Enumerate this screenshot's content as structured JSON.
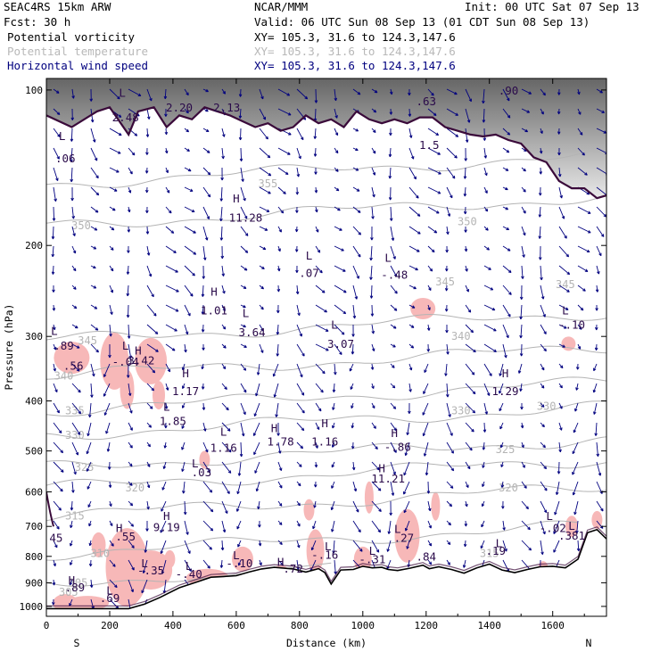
{
  "header": {
    "model": "SEAC4RS 15km ARW",
    "forecast": "Fcst:    30 h",
    "org": "NCAR/MMM",
    "init": "Init: 00 UTC Sat 07 Sep 13",
    "valid": "Valid: 06 UTC Sun 08 Sep 13 (01 CDT Sun 08 Sep 13)",
    "fields": [
      {
        "name": "Potential vorticity",
        "xy": "XY= 105.3, 31.6 to 124.3,147.6",
        "color": "#000000"
      },
      {
        "name": "Potential temperature",
        "xy": "XY= 105.3, 31.6 to 124.3,147.6",
        "color": "#b8b8b8"
      },
      {
        "name": "Horizontal wind speed",
        "xy": "XY= 105.3, 31.6 to 124.3,147.6",
        "color": "#00007f"
      }
    ]
  },
  "colors": {
    "pv_fill": "#f7b8b8",
    "theta": "#b4b4b4",
    "wind": "#00007f",
    "tropo": "#3a0a3a",
    "terrain": "#000000",
    "hl_text": "#2a0a4a"
  },
  "chart_data": {
    "type": "line",
    "title": "",
    "xlabel": "Distance (km)",
    "ylabel": "Pressure (hPa)",
    "xlim": [
      0,
      1770
    ],
    "ylim": [
      1045,
      95
    ],
    "y_log": true,
    "x_ticks": [
      0,
      200,
      400,
      600,
      800,
      1000,
      1200,
      1400,
      1600
    ],
    "y_ticks": [
      100,
      200,
      300,
      400,
      500,
      600,
      700,
      800,
      900,
      1000
    ],
    "x_end_labels": {
      "left": "S",
      "right": "N"
    },
    "terrain": [
      [
        0,
        1010
      ],
      [
        260,
        1010
      ],
      [
        310,
        990
      ],
      [
        360,
        960
      ],
      [
        420,
        920
      ],
      [
        480,
        895
      ],
      [
        520,
        878
      ],
      [
        560,
        875
      ],
      [
        600,
        872
      ],
      [
        640,
        858
      ],
      [
        680,
        846
      ],
      [
        720,
        840
      ],
      [
        780,
        846
      ],
      [
        820,
        858
      ],
      [
        860,
        845
      ],
      [
        880,
        860
      ],
      [
        900,
        905
      ],
      [
        930,
        850
      ],
      [
        970,
        848
      ],
      [
        1000,
        836
      ],
      [
        1030,
        842
      ],
      [
        1060,
        840
      ],
      [
        1080,
        848
      ],
      [
        1110,
        852
      ],
      [
        1150,
        843
      ],
      [
        1190,
        832
      ],
      [
        1210,
        845
      ],
      [
        1240,
        838
      ],
      [
        1280,
        848
      ],
      [
        1320,
        862
      ],
      [
        1360,
        842
      ],
      [
        1400,
        828
      ],
      [
        1440,
        850
      ],
      [
        1480,
        860
      ],
      [
        1520,
        848
      ],
      [
        1560,
        838
      ],
      [
        1600,
        836
      ],
      [
        1640,
        842
      ],
      [
        1680,
        810
      ],
      [
        1710,
        720
      ],
      [
        1740,
        710
      ],
      [
        1770,
        740
      ]
    ],
    "tropopause": [
      [
        0,
        112
      ],
      [
        80,
        118
      ],
      [
        160,
        110
      ],
      [
        200,
        108
      ],
      [
        260,
        122
      ],
      [
        290,
        110
      ],
      [
        340,
        108
      ],
      [
        380,
        118
      ],
      [
        420,
        112
      ],
      [
        460,
        114
      ],
      [
        500,
        108
      ],
      [
        540,
        110
      ],
      [
        580,
        112
      ],
      [
        620,
        115
      ],
      [
        660,
        118
      ],
      [
        700,
        116
      ],
      [
        740,
        120
      ],
      [
        780,
        118
      ],
      [
        820,
        112
      ],
      [
        860,
        116
      ],
      [
        900,
        114
      ],
      [
        940,
        118
      ],
      [
        980,
        110
      ],
      [
        1020,
        114
      ],
      [
        1060,
        116
      ],
      [
        1100,
        114
      ],
      [
        1140,
        116
      ],
      [
        1180,
        113
      ],
      [
        1220,
        113
      ],
      [
        1260,
        118
      ],
      [
        1300,
        120
      ],
      [
        1340,
        122
      ],
      [
        1380,
        123
      ],
      [
        1420,
        122
      ],
      [
        1460,
        125
      ],
      [
        1500,
        127
      ],
      [
        1540,
        135
      ],
      [
        1580,
        138
      ],
      [
        1620,
        150
      ],
      [
        1660,
        155
      ],
      [
        1700,
        155
      ],
      [
        1740,
        162
      ],
      [
        1770,
        160
      ]
    ],
    "isentropes": [
      {
        "label": "305",
        "p": 900,
        "x_label": 100
      },
      {
        "label": "310",
        "p": 790,
        "x_label": 170
      },
      {
        "label": "315",
        "p": 668,
        "x_label": 90
      },
      {
        "label": "320",
        "p": 590,
        "x_label": 280
      },
      {
        "label": "325",
        "p": 538,
        "x_label": 120
      },
      {
        "label": "330",
        "p": 466,
        "x_label": 90
      },
      {
        "label": "335",
        "p": 418,
        "x_label": 90
      },
      {
        "label": "340",
        "p": 358,
        "x_label": 55
      },
      {
        "label": "345",
        "p": 306,
        "x_label": 130
      },
      {
        "label": "350",
        "p": 183,
        "x_label": 110
      },
      {
        "label": "355",
        "p": 152,
        "x_label": 700
      }
    ],
    "extra_theta_labels": [
      {
        "label": "320",
        "x": 1460,
        "p": 590
      },
      {
        "label": "325",
        "x": 1450,
        "p": 497
      },
      {
        "label": "330",
        "x": 1310,
        "p": 418
      },
      {
        "label": "330",
        "x": 1580,
        "p": 410
      },
      {
        "label": "340",
        "x": 1310,
        "p": 300
      },
      {
        "label": "345",
        "x": 1260,
        "p": 235
      },
      {
        "label": "345",
        "x": 1640,
        "p": 238
      },
      {
        "label": "350",
        "x": 1330,
        "p": 180
      },
      {
        "label": "300",
        "x": 215,
        "p": 1035
      },
      {
        "label": "315",
        "x": 1400,
        "p": 790
      },
      {
        "label": "320",
        "x": 1680,
        "p": 870
      },
      {
        "label": "305",
        "x": 70,
        "p": 938
      }
    ],
    "pv_blobs": [
      {
        "x": 80,
        "p": 330,
        "rx": 20,
        "ry": 18
      },
      {
        "x": 215,
        "p": 335,
        "rx": 16,
        "ry": 32
      },
      {
        "x": 255,
        "p": 380,
        "rx": 8,
        "ry": 22
      },
      {
        "x": 330,
        "p": 335,
        "rx": 18,
        "ry": 26
      },
      {
        "x": 355,
        "p": 390,
        "rx": 7,
        "ry": 16
      },
      {
        "x": 500,
        "p": 520,
        "rx": 6,
        "ry": 10
      },
      {
        "x": 1190,
        "p": 265,
        "rx": 14,
        "ry": 12
      },
      {
        "x": 1650,
        "p": 310,
        "rx": 8,
        "ry": 8
      },
      {
        "x": 255,
        "p": 840,
        "rx": 24,
        "ry": 44
      },
      {
        "x": 165,
        "p": 760,
        "rx": 8,
        "ry": 14
      },
      {
        "x": 330,
        "p": 850,
        "rx": 24,
        "ry": 22
      },
      {
        "x": 390,
        "p": 810,
        "rx": 6,
        "ry": 10
      },
      {
        "x": 510,
        "p": 880,
        "rx": 24,
        "ry": 10
      },
      {
        "x": 620,
        "p": 810,
        "rx": 12,
        "ry": 14
      },
      {
        "x": 850,
        "p": 780,
        "rx": 10,
        "ry": 24
      },
      {
        "x": 1000,
        "p": 810,
        "rx": 10,
        "ry": 14
      },
      {
        "x": 1140,
        "p": 730,
        "rx": 14,
        "ry": 30
      },
      {
        "x": 740,
        "p": 860,
        "rx": 10,
        "ry": 8
      },
      {
        "x": 60,
        "p": 985,
        "rx": 14,
        "ry": 10
      },
      {
        "x": 130,
        "p": 985,
        "rx": 24,
        "ry": 8
      },
      {
        "x": 1660,
        "p": 700,
        "rx": 7,
        "ry": 12
      },
      {
        "x": 1740,
        "p": 680,
        "rx": 6,
        "ry": 10
      },
      {
        "x": 830,
        "p": 650,
        "rx": 6,
        "ry": 12
      },
      {
        "x": 1020,
        "p": 615,
        "rx": 5,
        "ry": 18
      },
      {
        "x": 1230,
        "p": 640,
        "rx": 5,
        "ry": 16
      },
      {
        "x": 1570,
        "p": 850,
        "rx": 6,
        "ry": 10
      }
    ],
    "hl_annotations": [
      {
        "t": "L",
        "x": 50,
        "p": 125
      },
      {
        "t": ".06",
        "x": 60,
        "p": 138
      },
      {
        "t": "L",
        "x": 240,
        "p": 103
      },
      {
        "t": "2.48",
        "x": 250,
        "p": 115
      },
      {
        "t": "2.20",
        "x": 420,
        "p": 110
      },
      {
        "t": "2.13",
        "x": 570,
        "p": 110
      },
      {
        "t": ".63",
        "x": 1200,
        "p": 107
      },
      {
        "t": ".90",
        "x": 1460,
        "p": 102
      },
      {
        "t": "1.5",
        "x": 1210,
        "p": 130
      },
      {
        "t": "H",
        "x": 600,
        "p": 165
      },
      {
        "t": "11.28",
        "x": 630,
        "p": 180
      },
      {
        "t": "L",
        "x": 830,
        "p": 213
      },
      {
        "t": ".07",
        "x": 830,
        "p": 230
      },
      {
        "t": "L",
        "x": 1080,
        "p": 215
      },
      {
        "t": "-.48",
        "x": 1100,
        "p": 232
      },
      {
        "t": "H",
        "x": 530,
        "p": 250
      },
      {
        "t": "1.01",
        "x": 530,
        "p": 272
      },
      {
        "t": "L",
        "x": 630,
        "p": 275
      },
      {
        "t": "3.64",
        "x": 650,
        "p": 300
      },
      {
        "t": "L",
        "x": 910,
        "p": 290
      },
      {
        "t": "3.07",
        "x": 930,
        "p": 316
      },
      {
        "t": "L",
        "x": 1640,
        "p": 272
      },
      {
        "t": "-.10",
        "x": 1660,
        "p": 290
      },
      {
        "t": "L",
        "x": 25,
        "p": 298
      },
      {
        "t": ".89",
        "x": 55,
        "p": 318
      },
      {
        "t": ".56",
        "x": 85,
        "p": 348
      },
      {
        "t": "L",
        "x": 250,
        "p": 318
      },
      {
        "t": "-.04",
        "x": 250,
        "p": 342
      },
      {
        "t": "H",
        "x": 290,
        "p": 325
      },
      {
        "t": "3.42",
        "x": 300,
        "p": 340
      },
      {
        "t": "H",
        "x": 440,
        "p": 360
      },
      {
        "t": "1.17",
        "x": 440,
        "p": 390
      },
      {
        "t": "H",
        "x": 1450,
        "p": 360
      },
      {
        "t": "1.29",
        "x": 1450,
        "p": 390
      },
      {
        "t": "L",
        "x": 380,
        "p": 418
      },
      {
        "t": "1.85",
        "x": 400,
        "p": 445
      },
      {
        "t": "L",
        "x": 560,
        "p": 467
      },
      {
        "t": "1.16",
        "x": 560,
        "p": 502
      },
      {
        "t": "H",
        "x": 720,
        "p": 460
      },
      {
        "t": "1.78",
        "x": 740,
        "p": 488
      },
      {
        "t": "H",
        "x": 880,
        "p": 450
      },
      {
        "t": "1.16",
        "x": 880,
        "p": 488
      },
      {
        "t": "H",
        "x": 1100,
        "p": 470
      },
      {
        "t": "-.86",
        "x": 1110,
        "p": 500
      },
      {
        "t": "L",
        "x": 470,
        "p": 538
      },
      {
        "t": ".03",
        "x": 490,
        "p": 560
      },
      {
        "t": "H",
        "x": 1060,
        "p": 550
      },
      {
        "t": "11.21",
        "x": 1080,
        "p": 575
      },
      {
        "t": "H",
        "x": 380,
        "p": 680
      },
      {
        "t": "9.19",
        "x": 380,
        "p": 715
      },
      {
        "t": "L",
        "x": 1590,
        "p": 680
      },
      {
        "t": "-.02",
        "x": 1600,
        "p": 718
      },
      {
        "t": "L",
        "x": 1660,
        "p": 710
      },
      {
        "t": ".381",
        "x": 1660,
        "p": 742
      },
      {
        "t": "H",
        "x": 230,
        "p": 717
      },
      {
        "t": ".55",
        "x": 250,
        "p": 745
      },
      {
        "t": "L",
        "x": 1110,
        "p": 720
      },
      {
        "t": ".27",
        "x": 1130,
        "p": 750
      },
      {
        "t": ".45",
        "x": 20,
        "p": 750
      },
      {
        "t": "L",
        "x": 1430,
        "p": 768
      },
      {
        "t": ".19",
        "x": 1420,
        "p": 795
      },
      {
        "t": "L",
        "x": 890,
        "p": 778
      },
      {
        "t": "-.16",
        "x": 880,
        "p": 808
      },
      {
        "t": "L",
        "x": 1030,
        "p": 795
      },
      {
        "t": "-.31",
        "x": 1030,
        "p": 825
      },
      {
        "t": ".84",
        "x": 1200,
        "p": 815
      },
      {
        "t": "L",
        "x": 600,
        "p": 810
      },
      {
        "t": "-.10",
        "x": 610,
        "p": 840
      },
      {
        "t": "L",
        "x": 310,
        "p": 840
      },
      {
        "t": "-.35",
        "x": 330,
        "p": 866
      },
      {
        "t": "L",
        "x": 450,
        "p": 850
      },
      {
        "t": "-.40",
        "x": 450,
        "p": 880
      },
      {
        "t": "H",
        "x": 740,
        "p": 835
      },
      {
        "t": ".72",
        "x": 780,
        "p": 860
      },
      {
        "t": "H",
        "x": 80,
        "p": 905
      },
      {
        "t": ".89",
        "x": 90,
        "p": 935
      },
      {
        "t": "L",
        "x": 200,
        "p": 948
      },
      {
        "t": ".69",
        "x": 200,
        "p": 980
      }
    ],
    "grid": false,
    "legend": "none"
  }
}
